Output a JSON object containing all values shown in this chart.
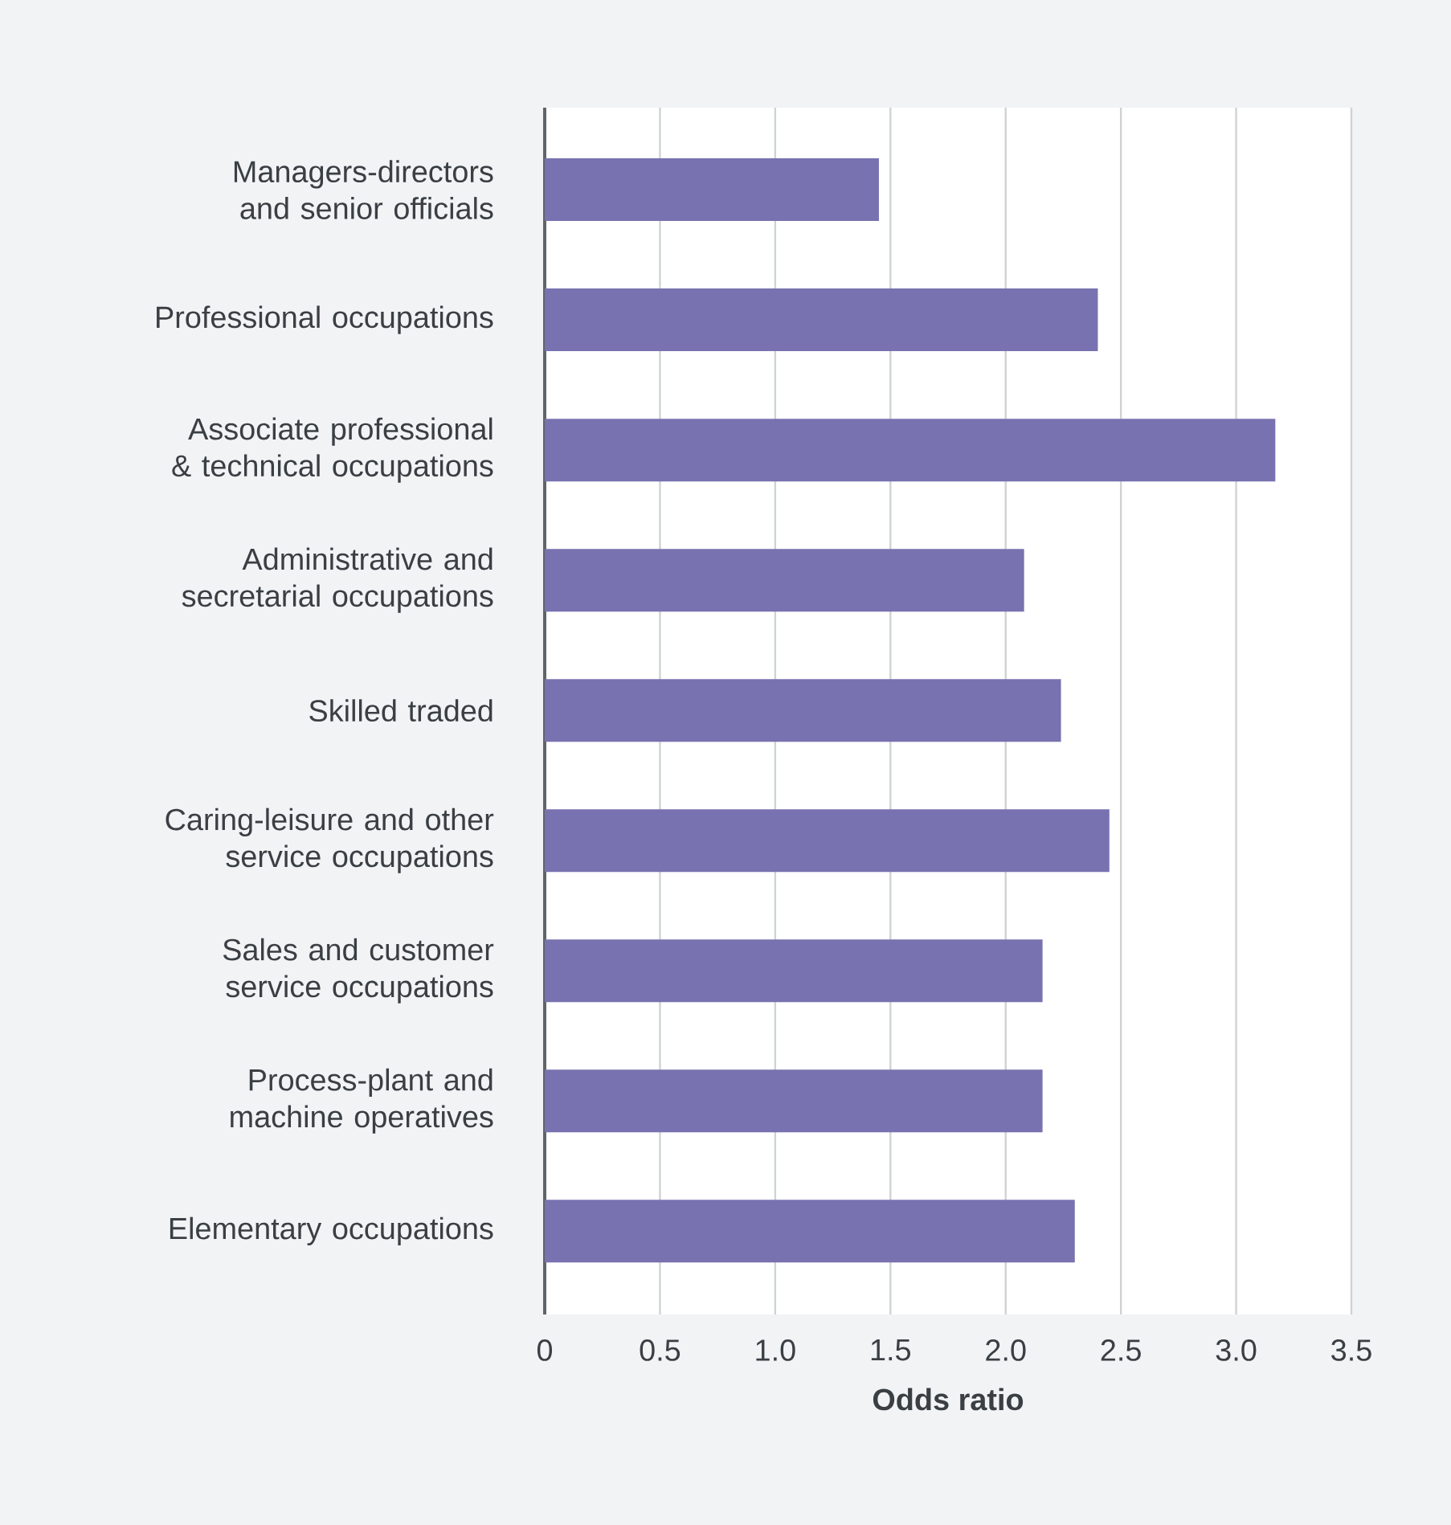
{
  "chart_data": {
    "type": "bar",
    "orientation": "horizontal",
    "xlabel": "Odds ratio",
    "categories": [
      "Managers-directors and senior officials",
      "Professional occupations",
      "Associate professional & technical occupations",
      "Administrative and secretarial occupations",
      "Skilled traded",
      "Caring-leisure and other service occupations",
      "Sales and customer service occupations",
      "Process-plant and machine operatives",
      "Elementary occupations"
    ],
    "values": [
      1.45,
      2.4,
      3.17,
      2.08,
      2.24,
      2.45,
      2.16,
      2.16,
      2.3
    ],
    "color": "#7872b0",
    "xlim": [
      0,
      3.5
    ],
    "xticks": [
      0,
      0.5,
      {
        "value": 1,
        "label": "1.0"
      },
      1.5,
      {
        "value": 2,
        "label": "2.0"
      },
      2.5,
      {
        "value": 3,
        "label": "3.0"
      },
      3.5
    ],
    "grid": "x"
  }
}
